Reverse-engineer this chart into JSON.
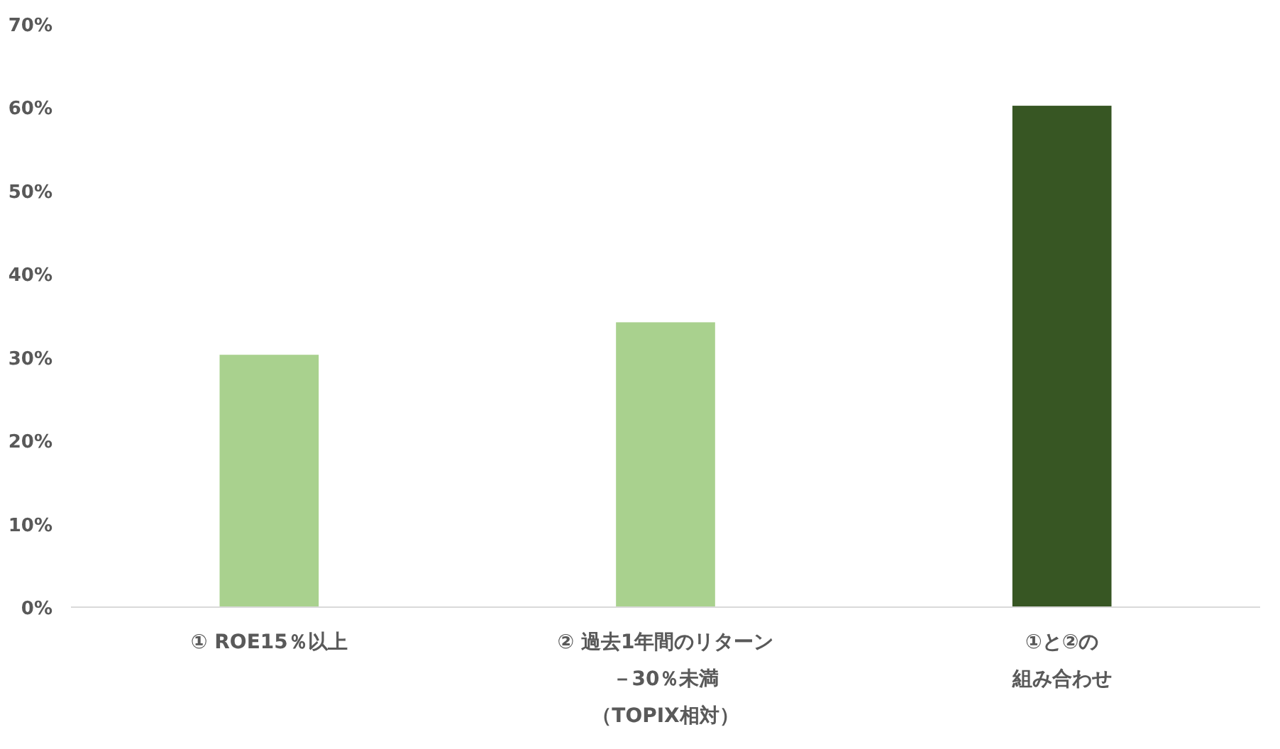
{
  "chart_data": {
    "type": "bar",
    "categories": [
      "① ROE15％以上",
      "② 過去1年間のリターン－30％未満（TOPIX相対）",
      "①と②の組み合わせ"
    ],
    "values": [
      30.3,
      34.2,
      60.2
    ],
    "colors": [
      "#a9d18e",
      "#a9d18e",
      "#375623"
    ],
    "ylim": [
      0,
      70
    ],
    "yticks": [
      {
        "value": 0,
        "label": "0%"
      },
      {
        "value": 10,
        "label": "10%"
      },
      {
        "value": 20,
        "label": "20%"
      },
      {
        "value": 30,
        "label": "30%"
      },
      {
        "value": 40,
        "label": "40%"
      },
      {
        "value": 50,
        "label": "50%"
      },
      {
        "value": 60,
        "label": "60%"
      },
      {
        "value": 70,
        "label": "70%"
      }
    ],
    "grid": false
  }
}
